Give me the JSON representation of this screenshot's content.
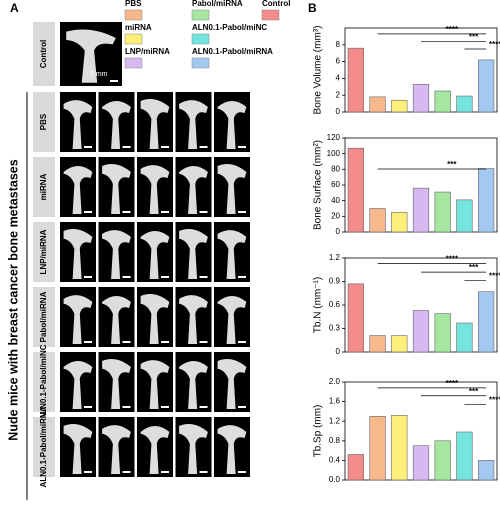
{
  "panel_a": {
    "label": "A",
    "side_title": "Nude mice with breast cancer bone metastases",
    "scale_bar": "2 mm",
    "rows": [
      "Control",
      "PBS",
      "miRNA",
      "LNP/miRNA",
      "Pabol/miRNA",
      "ALN0.1-Pabol/miNC",
      "ALN0.1-Pabol/miRNA"
    ]
  },
  "panel_b": {
    "label": "B"
  },
  "legend": [
    {
      "name": "PBS",
      "color": "#f7b98b"
    },
    {
      "name": "Pabol/miRNA",
      "color": "#a6e6a0"
    },
    {
      "name": "Control",
      "color": "#f38b8b"
    },
    {
      "name": "miRNA",
      "color": "#fdef7a"
    },
    {
      "name": "ALN0.1-Pabol/miNC",
      "color": "#74e4de"
    },
    {
      "name": "LNP/miRNA",
      "color": "#d7b9f2"
    },
    {
      "name": "ALN0.1-Pabol/miRNA",
      "color": "#a3c9f2"
    }
  ],
  "chart_data": [
    {
      "type": "bar",
      "ylabel": "Bone Volume (mm³)",
      "categories": [
        "Control",
        "PBS",
        "miRNA",
        "LNP/miRNA",
        "Pabol/miRNA",
        "ALN0.1-Pabol/miNC",
        "ALN0.1-Pabol/miRNA"
      ],
      "colors": [
        "#f38b8b",
        "#f7b98b",
        "#fdef7a",
        "#d7b9f2",
        "#a6e6a0",
        "#74e4de",
        "#a3c9f2"
      ],
      "values": [
        7.6,
        1.8,
        1.4,
        3.3,
        2.5,
        1.9,
        6.2
      ],
      "ylim": [
        0,
        10
      ],
      "yticks": [
        0,
        2,
        4,
        6,
        8
      ],
      "annotations": [
        "****",
        "***",
        "****"
      ]
    },
    {
      "type": "bar",
      "ylabel": "Bone Surface (mm²)",
      "categories": [
        "Control",
        "PBS",
        "miRNA",
        "LNP/miRNA",
        "Pabol/miRNA",
        "ALN0.1-Pabol/miNC",
        "ALN0.1-Pabol/miRNA"
      ],
      "colors": [
        "#f38b8b",
        "#f7b98b",
        "#fdef7a",
        "#d7b9f2",
        "#a6e6a0",
        "#74e4de",
        "#a3c9f2"
      ],
      "values": [
        107,
        30,
        25,
        56,
        51,
        41,
        81
      ],
      "ylim": [
        0,
        120
      ],
      "yticks": [
        0,
        20,
        40,
        60,
        80,
        100,
        120
      ],
      "annotations": [
        "***"
      ]
    },
    {
      "type": "bar",
      "ylabel": "Tb.N (mm⁻¹)",
      "categories": [
        "Control",
        "PBS",
        "miRNA",
        "LNP/miRNA",
        "Pabol/miRNA",
        "ALN0.1-Pabol/miNC",
        "ALN0.1-Pabol/miRNA"
      ],
      "colors": [
        "#f38b8b",
        "#f7b98b",
        "#fdef7a",
        "#d7b9f2",
        "#a6e6a0",
        "#74e4de",
        "#a3c9f2"
      ],
      "values": [
        0.87,
        0.21,
        0.21,
        0.53,
        0.49,
        0.37,
        0.77
      ],
      "ylim": [
        0,
        1.2
      ],
      "yticks": [
        0,
        0.3,
        0.6,
        0.9,
        1.2
      ],
      "annotations": [
        "****",
        "***",
        "****"
      ]
    },
    {
      "type": "bar",
      "ylabel": "Tb.Sp (mm)",
      "categories": [
        "Control",
        "PBS",
        "miRNA",
        "LNP/miRNA",
        "Pabol/miRNA",
        "ALN0.1-Pabol/miNC",
        "ALN0.1-Pabol/miRNA"
      ],
      "colors": [
        "#f38b8b",
        "#f7b98b",
        "#fdef7a",
        "#d7b9f2",
        "#a6e6a0",
        "#74e4de",
        "#a3c9f2"
      ],
      "values": [
        0.52,
        1.3,
        1.32,
        0.7,
        0.8,
        0.98,
        0.4
      ],
      "ylim": [
        0,
        2.0
      ],
      "yticks": [
        {
          "value": 0,
          "label": "0.0"
        },
        0.4,
        0.8,
        1.2,
        1.6,
        {
          "value": 2.0,
          "label": "2.0"
        }
      ],
      "annotations": [
        "****",
        "***",
        "****"
      ]
    }
  ]
}
